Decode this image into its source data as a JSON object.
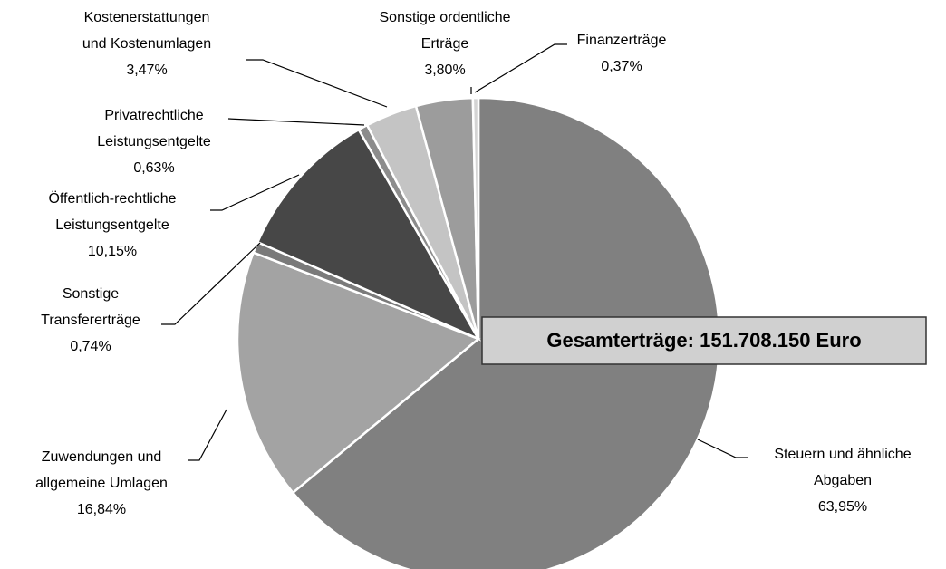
{
  "chart_data": {
    "type": "pie",
    "annotations": [
      "Gesamterträge: 151.708.150 Euro"
    ],
    "categories": [
      [
        "Steuern und ähnliche",
        "Abgaben"
      ],
      [
        "Zuwendungen und",
        "allgemeine Umlagen"
      ],
      [
        "Sonstige",
        "Transfererträge"
      ],
      [
        "Öffentlich-rechtliche",
        "Leistungsentgelte"
      ],
      [
        "Privatrechtliche",
        "Leistungsentgelte"
      ],
      [
        "Kostenerstattungen",
        "und Kostenumlagen"
      ],
      [
        "Sonstige ordentliche",
        "Erträge"
      ],
      [
        "Finanzerträge"
      ]
    ],
    "values": [
      63.95,
      16.84,
      0.74,
      10.15,
      0.63,
      3.47,
      3.8,
      0.37
    ],
    "value_labels": [
      "63,95%",
      "16,84%",
      "0,74%",
      "10,15%",
      "0,63%",
      "3,47%",
      "3,80%",
      "0,37%"
    ],
    "colors": [
      "#808080",
      "#a3a3a3",
      "#7a7a7a",
      "#474747",
      "#8c8c8c",
      "#c4c4c4",
      "#9c9c9c",
      "#d4d4d4"
    ]
  }
}
